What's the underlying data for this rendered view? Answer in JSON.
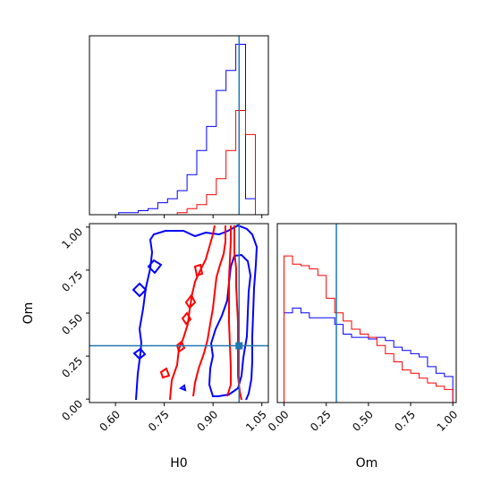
{
  "chart_data": {
    "type": "corner",
    "truth": {
      "H0": 0.98,
      "Om": 0.31
    },
    "series_colors": [
      "#0000ff",
      "#ff0000"
    ],
    "truth_color": "#1f77b4",
    "panels": [
      {
        "id": "hist-H0",
        "type": "histogram",
        "xlim": [
          0.52,
          1.07
        ],
        "bin_edges": [
          0.61,
          0.64,
          0.67,
          0.7,
          0.73,
          0.76,
          0.79,
          0.82,
          0.85,
          0.88,
          0.91,
          0.94,
          0.97,
          1.0,
          1.03
        ],
        "series": [
          {
            "color": "#0000ff",
            "values": [
              1,
              1,
              2,
              3,
              6,
              8,
              12,
              20,
              32,
              44,
              62,
              72,
              85,
              8
            ]
          },
          {
            "color": "#ff0000",
            "values": [
              0,
              0,
              0,
              0,
              0,
              0,
              1,
              3,
              5,
              10,
              18,
              32,
              52,
              40
            ]
          }
        ]
      },
      {
        "id": "hist-Om",
        "type": "histogram",
        "xlim": [
          -0.04,
          1.02
        ],
        "bin_edges": [
          0,
          0.05,
          0.1,
          0.15,
          0.2,
          0.25,
          0.3,
          0.35,
          0.4,
          0.45,
          0.5,
          0.55,
          0.6,
          0.65,
          0.7,
          0.75,
          0.8,
          0.85,
          0.9,
          0.95,
          1.0
        ],
        "series": [
          {
            "color": "#0000ff",
            "values": [
              55,
              58,
              55,
              52,
              52,
              52,
              48,
              42,
              40,
              40,
              39,
              40,
              38,
              34,
              32,
              30,
              28,
              22,
              18,
              16
            ]
          },
          {
            "color": "#ff0000",
            "values": [
              90,
              85,
              84,
              82,
              78,
              64,
              55,
              50,
              45,
              42,
              40,
              35,
              30,
              25,
              20,
              18,
              15,
              12,
              10,
              8
            ]
          }
        ]
      },
      {
        "id": "contour-H0-Om",
        "type": "contour",
        "xlim": [
          0.52,
          1.07
        ],
        "ylim": [
          -0.02,
          1.02
        ],
        "xticks": [
          "0.60",
          "0.75",
          "0.90",
          "1.05"
        ],
        "xtick_values": [
          0.6,
          0.75,
          0.9,
          1.05
        ],
        "yticks": [
          "0.00",
          "0.25",
          "0.50",
          "0.75",
          "1.00"
        ],
        "ytick_values": [
          0.0,
          0.25,
          0.5,
          0.75,
          1.0
        ],
        "xlabel": "H0",
        "ylabel": "Om"
      }
    ],
    "om_xticks": [
      "0.00",
      "0.25",
      "0.50",
      "0.75",
      "1.00"
    ],
    "om_xtick_values": [
      0.0,
      0.25,
      0.5,
      0.75,
      1.0
    ],
    "om_xlabel": "Om"
  }
}
